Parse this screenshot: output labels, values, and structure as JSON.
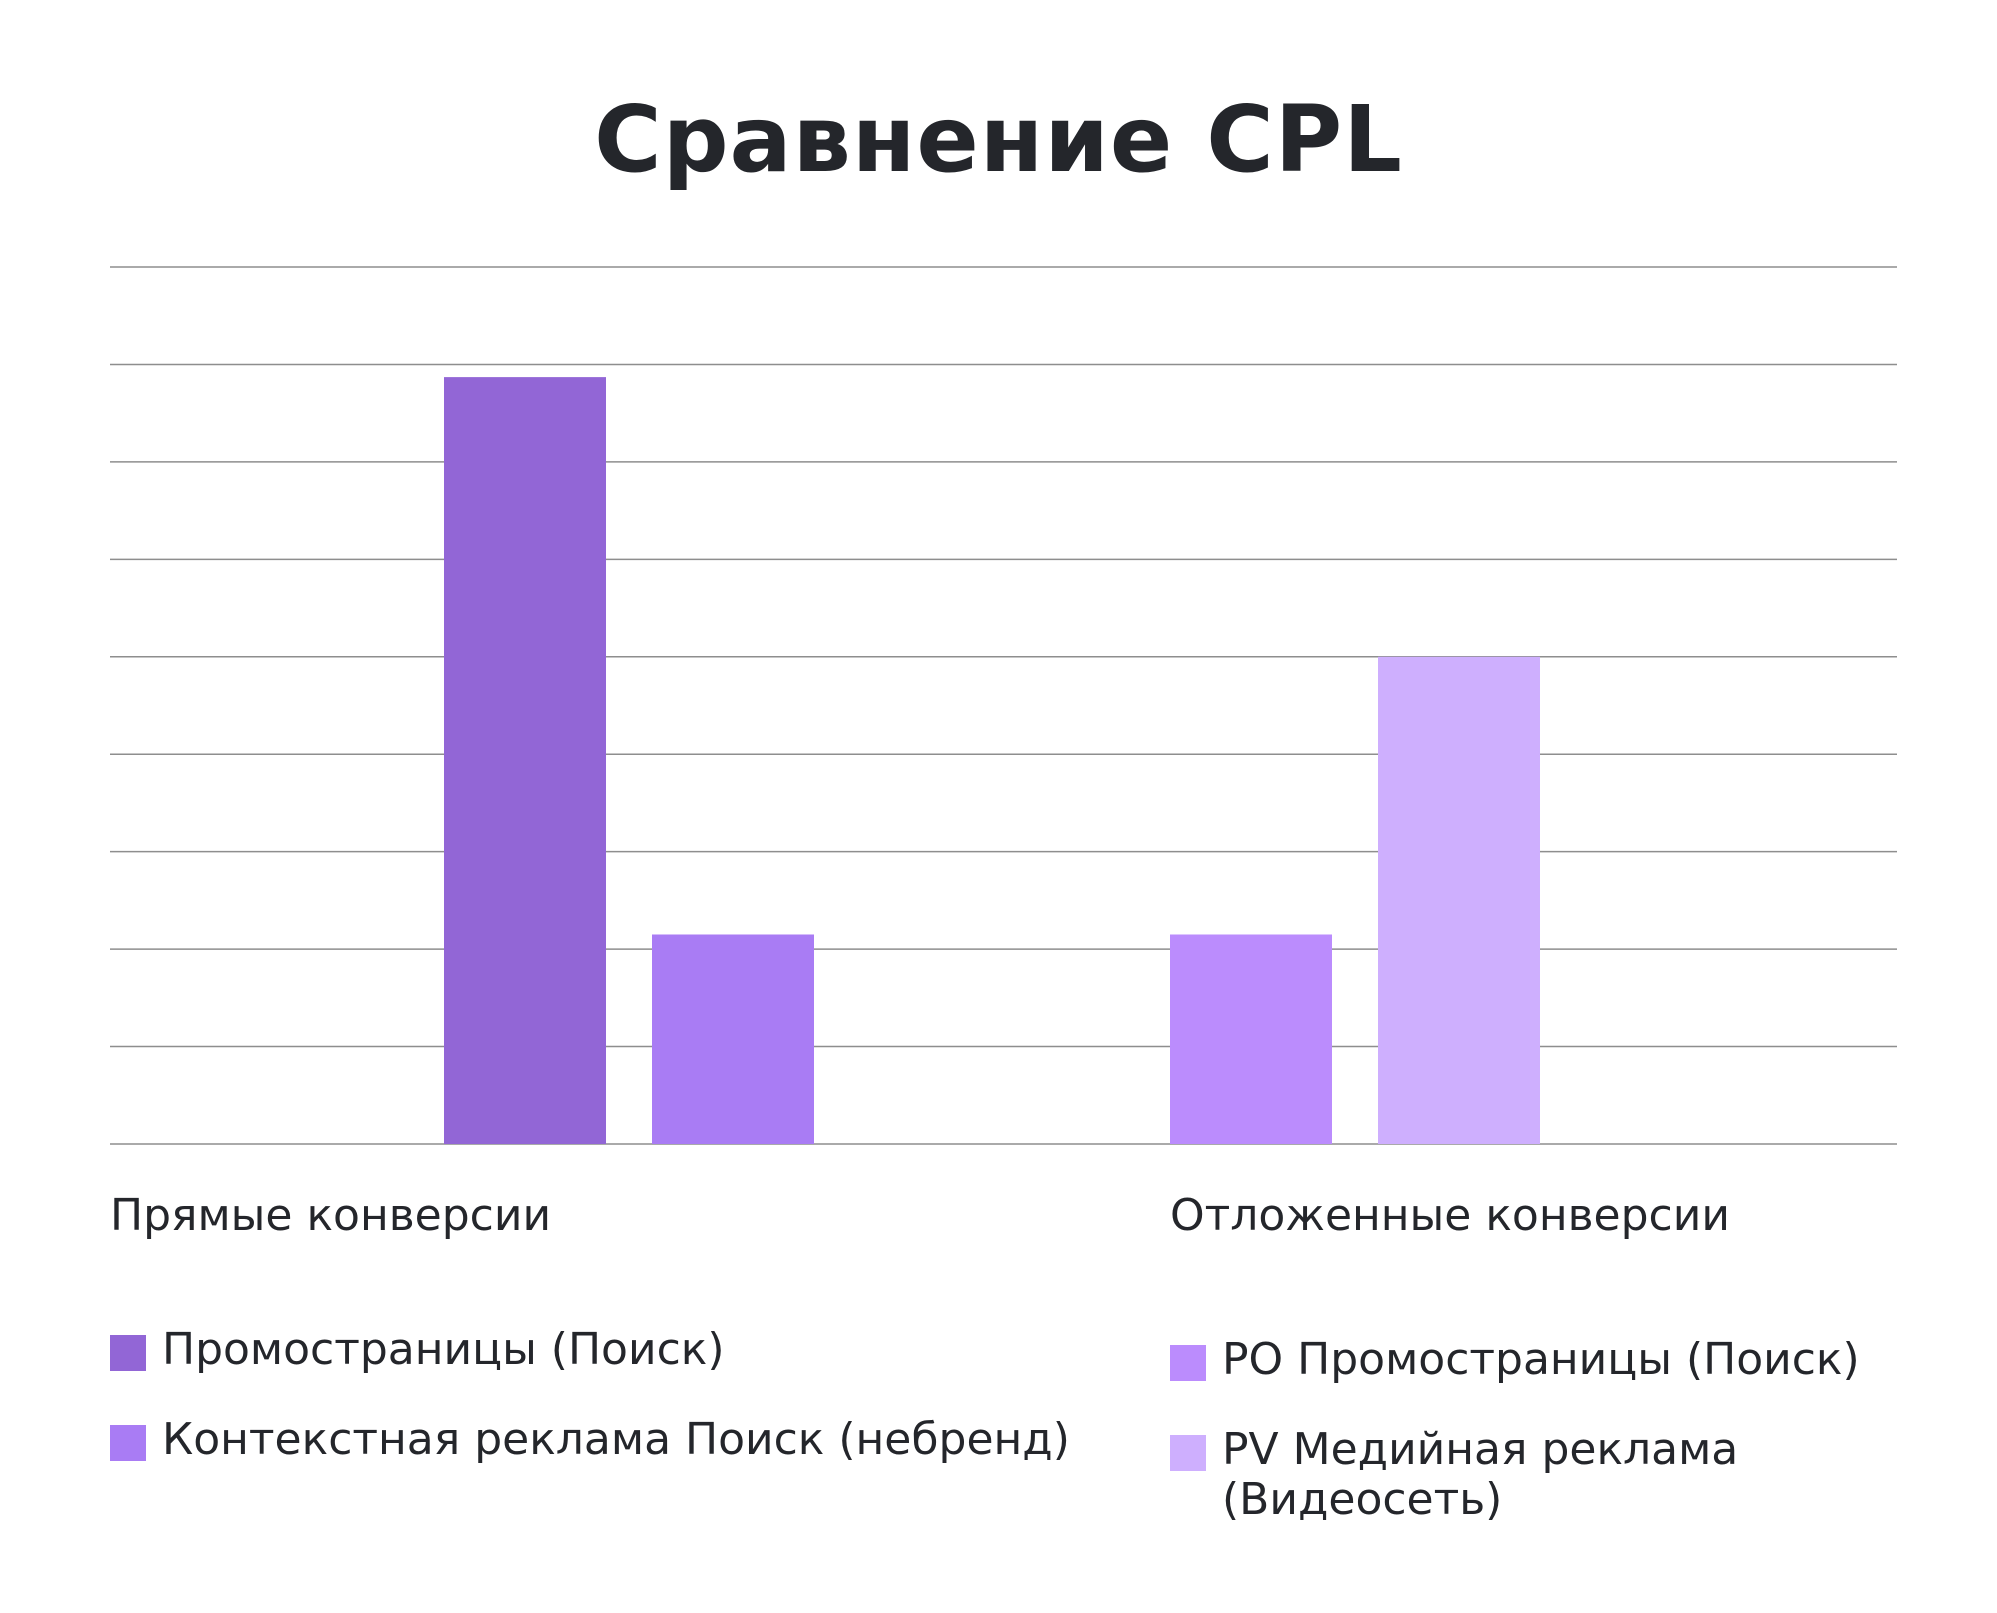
{
  "chart_data": {
    "type": "bar",
    "title": "Сравнение CPL",
    "xlabel": "",
    "ylabel": "",
    "ylim": [
      0,
      9
    ],
    "grid": true,
    "gridlines": 10,
    "categories": [
      "Прямые конверсии",
      "Отложенные конверсии"
    ],
    "series": [
      {
        "name": "Промостраницы (Поиск)",
        "group": 0,
        "value": 7.87,
        "color": "#9266d6"
      },
      {
        "name": "Контекстная реклама Поиск (небренд)",
        "group": 0,
        "value": 2.15,
        "color": "#a97cf4"
      },
      {
        "name": "PO Промостраницы (Поиск)",
        "group": 1,
        "value": 2.15,
        "color": "#bb8cfd"
      },
      {
        "name": "PV Медийная реклама (Видеосеть)",
        "group": 1,
        "value": 5.0,
        "color": "#ceaffe"
      }
    ],
    "legend_position": "bottom"
  },
  "legend": {
    "left": [
      {
        "label": "Промостраницы (Поиск)",
        "color": "#9266d6"
      },
      {
        "label": "Контекстная реклама Поиск (небренд)",
        "color": "#a97cf4"
      }
    ],
    "right": [
      {
        "label": "PO Промостраницы (Поиск)",
        "color": "#bb8cfd"
      },
      {
        "label": "PV Медийная реклама\n(Видеосеть)",
        "color": "#ceaffe"
      }
    ]
  },
  "colors": {
    "gridline": "#8e8e8e",
    "text": "#24262b"
  }
}
